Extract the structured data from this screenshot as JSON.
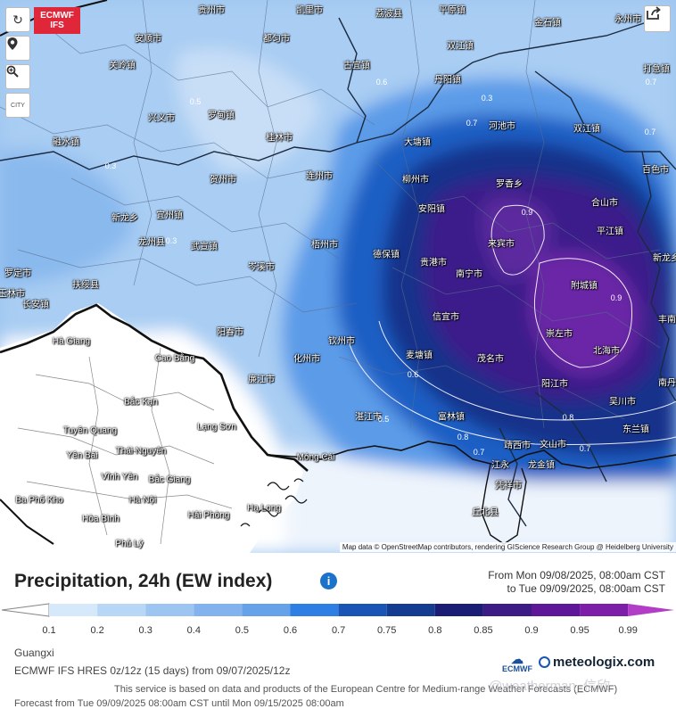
{
  "map": {
    "controls": {
      "refresh_icon": "refresh-icon",
      "locate_icon": "location-pin-icon",
      "zoom_icon": "zoom-icon",
      "city_label": "CITY",
      "share_icon": "share-icon"
    },
    "logo": "ECMWF IFS",
    "attribution": "Map data © OpenStreetMap contributors, rendering GIScience Research Group @ Heidelberg University",
    "cities": [
      {
        "name": "贵州市"
      },
      {
        "name": "凯里市"
      },
      {
        "name": "荔波县"
      },
      {
        "name": "平原镇"
      },
      {
        "name": "永州市"
      },
      {
        "name": "金石镇"
      },
      {
        "name": "安顺市"
      },
      {
        "name": "都匀市"
      },
      {
        "name": "双江镇"
      },
      {
        "name": "关岭镇"
      },
      {
        "name": "古宜镇"
      },
      {
        "name": "打急镇"
      },
      {
        "name": "丹阳镇"
      },
      {
        "name": "兴义市"
      },
      {
        "name": "罗甸镇"
      },
      {
        "name": "河池市"
      },
      {
        "name": "融水镇"
      },
      {
        "name": "桂林市"
      },
      {
        "name": "大塘镇"
      },
      {
        "name": "双江镇"
      },
      {
        "name": "柳州市"
      },
      {
        "name": "贺州市"
      },
      {
        "name": "罗香乡"
      },
      {
        "name": "连州市"
      },
      {
        "name": "百色市"
      },
      {
        "name": "安阳镇"
      },
      {
        "name": "合山市"
      },
      {
        "name": "来宾市"
      },
      {
        "name": "武宣镇"
      },
      {
        "name": "梧州市"
      },
      {
        "name": "新龙乡"
      },
      {
        "name": "德保镇"
      },
      {
        "name": "贵港市"
      },
      {
        "name": "岑溪市"
      },
      {
        "name": "南宁市"
      },
      {
        "name": "附城镇"
      },
      {
        "name": "罗定市"
      },
      {
        "name": "扶绥县"
      },
      {
        "name": "玉林市"
      },
      {
        "name": "信宜市"
      },
      {
        "name": "阳春市"
      },
      {
        "name": "崇左市"
      },
      {
        "name": "钦州市"
      },
      {
        "name": "麦塘镇"
      },
      {
        "name": "北海市"
      },
      {
        "name": "化州市"
      },
      {
        "name": "茂名市"
      },
      {
        "name": "阳江市"
      },
      {
        "name": "廉江市"
      },
      {
        "name": "吴川市"
      },
      {
        "name": "湛江市"
      },
      {
        "name": "富林镇"
      },
      {
        "name": "东兰镇"
      },
      {
        "name": "靖西市"
      },
      {
        "name": "文山市"
      },
      {
        "name": "江永"
      },
      {
        "name": "龙金镇"
      },
      {
        "name": "凭祥市"
      },
      {
        "name": "丘北县"
      },
      {
        "name": "南丹县"
      },
      {
        "name": "丰南镇"
      },
      {
        "name": "平江镇"
      },
      {
        "name": "新龙乡"
      },
      {
        "name": "宜州镇"
      },
      {
        "name": "龙州县"
      },
      {
        "name": "长安镇"
      }
    ],
    "vn_cities": [
      "Hà Giang",
      "Cao Bằng",
      "Bắc Kạn",
      "Lạng Sơn",
      "Tuyên Quang",
      "Thái Nguyên",
      "Yên Bái",
      "Vĩnh Yên",
      "Bắc Giang",
      "Hà Nội",
      "Hải Phòng",
      "Hạ Long",
      "Móng Cái",
      "Hòa Bình",
      "Phủ Lý",
      "Ba Phố Kho"
    ],
    "contour_labels": [
      "0.7",
      "0.7",
      "0.8",
      "0.9",
      "0.9",
      "0.8",
      "0.7",
      "0.6",
      "0.5",
      "0.3",
      "0.3",
      "0.3",
      "0.6",
      "0.7",
      "0.7",
      "0.5"
    ]
  },
  "header": {
    "title": "Precipitation, 24h (EW index)",
    "info_icon": "info-icon",
    "from": "From Mon 09/08/2025, 08:00am CST",
    "to": "to Tue 09/09/2025, 08:00am CST"
  },
  "legend": {
    "ticks": [
      "0.1",
      "0.2",
      "0.3",
      "0.4",
      "0.5",
      "0.6",
      "0.7",
      "0.75",
      "0.8",
      "0.85",
      "0.9",
      "0.95",
      "0.99"
    ],
    "colors": [
      "#ffffff",
      "#d6e9fb",
      "#b8d6f5",
      "#9dc5f2",
      "#82b3ee",
      "#66a2ea",
      "#2e7fe3",
      "#1a55b5",
      "#143c91",
      "#1a1d73",
      "#3d1b85",
      "#5e1796",
      "#7c1ea8",
      "#b23ec8"
    ]
  },
  "footer": {
    "region": "Guangxi",
    "model": "ECMWF IFS HRES 0z/12z (15 days) from 09/07/2025/12z",
    "service": "This service is based on data and products of the European Centre for Medium-range Weather Forecasts (ECMWF)",
    "forecast": "Forecast from Tue 09/09/2025 08:00am CST until Mon 09/15/2025 08:00am",
    "ecmwf_logo": "ECMWF",
    "brand": "meteologix.com",
    "watermark": "@weatherman_信欣"
  }
}
